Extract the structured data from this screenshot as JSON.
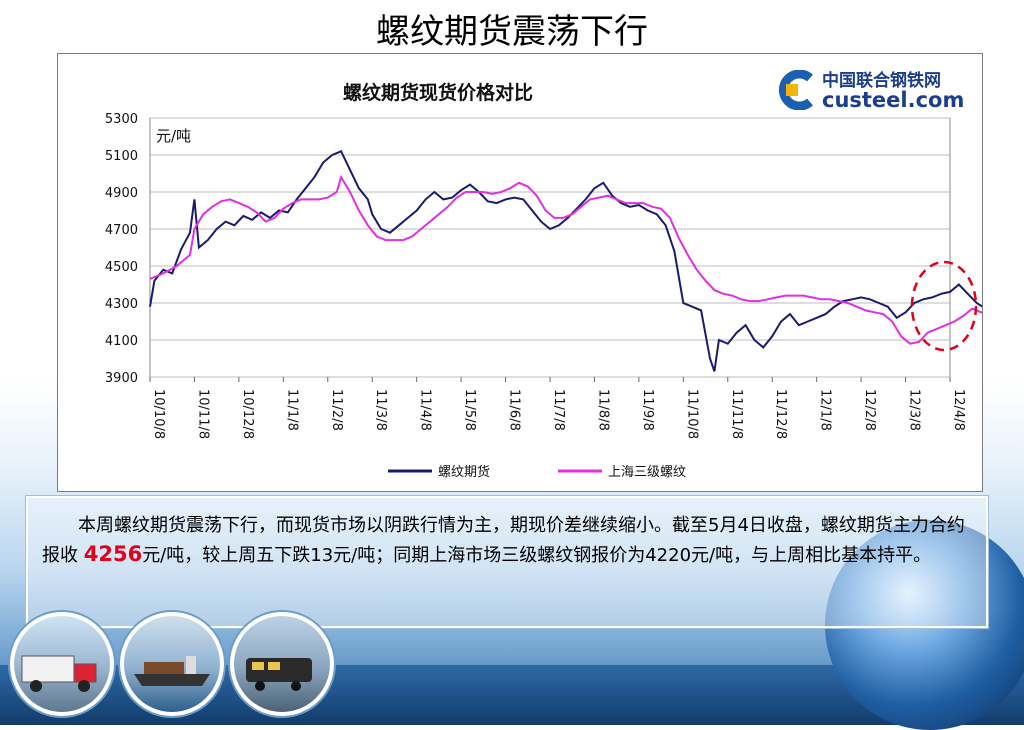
{
  "slide": {
    "title": "螺纹期货震荡下行"
  },
  "chart_data": {
    "type": "line",
    "title": "螺纹期货现货价格对比",
    "unit_label": "元/吨",
    "ylim": [
      3900,
      5300
    ],
    "yticks": [
      3900,
      4100,
      4300,
      4500,
      4700,
      4900,
      5100,
      5300
    ],
    "x_ticks": [
      "10/10/8",
      "10/11/8",
      "10/12/8",
      "11/1/8",
      "11/2/8",
      "11/3/8",
      "11/4/8",
      "11/5/8",
      "11/6/8",
      "11/7/8",
      "11/8/8",
      "11/9/8",
      "11/10/8",
      "11/11/8",
      "11/12/8",
      "12/1/8",
      "12/2/8",
      "12/3/8",
      "12/4/8"
    ],
    "grid": "horizontal",
    "legend_position": "bottom",
    "series": [
      {
        "name": "螺纹期货",
        "color": "#1a1a6e",
        "points": [
          [
            0,
            4280
          ],
          [
            0.1,
            4420
          ],
          [
            0.3,
            4480
          ],
          [
            0.5,
            4460
          ],
          [
            0.7,
            4590
          ],
          [
            0.9,
            4680
          ],
          [
            1.0,
            4860
          ],
          [
            1.1,
            4600
          ],
          [
            1.3,
            4640
          ],
          [
            1.5,
            4700
          ],
          [
            1.7,
            4740
          ],
          [
            1.9,
            4720
          ],
          [
            2.1,
            4770
          ],
          [
            2.3,
            4750
          ],
          [
            2.5,
            4790
          ],
          [
            2.7,
            4760
          ],
          [
            2.9,
            4800
          ],
          [
            3.1,
            4790
          ],
          [
            3.3,
            4860
          ],
          [
            3.5,
            4920
          ],
          [
            3.7,
            4980
          ],
          [
            3.9,
            5060
          ],
          [
            4.1,
            5100
          ],
          [
            4.3,
            5120
          ],
          [
            4.5,
            5020
          ],
          [
            4.7,
            4920
          ],
          [
            4.9,
            4860
          ],
          [
            5.0,
            4780
          ],
          [
            5.2,
            4700
          ],
          [
            5.4,
            4680
          ],
          [
            5.6,
            4720
          ],
          [
            5.8,
            4760
          ],
          [
            6.0,
            4800
          ],
          [
            6.2,
            4860
          ],
          [
            6.4,
            4900
          ],
          [
            6.6,
            4860
          ],
          [
            6.8,
            4870
          ],
          [
            7.0,
            4910
          ],
          [
            7.2,
            4940
          ],
          [
            7.4,
            4900
          ],
          [
            7.6,
            4850
          ],
          [
            7.8,
            4840
          ],
          [
            8.0,
            4860
          ],
          [
            8.2,
            4870
          ],
          [
            8.4,
            4860
          ],
          [
            8.6,
            4800
          ],
          [
            8.8,
            4740
          ],
          [
            9.0,
            4700
          ],
          [
            9.2,
            4720
          ],
          [
            9.4,
            4760
          ],
          [
            9.6,
            4810
          ],
          [
            9.8,
            4860
          ],
          [
            10.0,
            4920
          ],
          [
            10.2,
            4950
          ],
          [
            10.4,
            4880
          ],
          [
            10.6,
            4840
          ],
          [
            10.8,
            4820
          ],
          [
            11.0,
            4830
          ],
          [
            11.2,
            4800
          ],
          [
            11.4,
            4780
          ],
          [
            11.6,
            4720
          ],
          [
            11.8,
            4580
          ],
          [
            12.0,
            4300
          ],
          [
            12.2,
            4280
          ],
          [
            12.4,
            4260
          ],
          [
            12.6,
            4000
          ],
          [
            12.7,
            3930
          ],
          [
            12.8,
            4100
          ],
          [
            13.0,
            4080
          ],
          [
            13.2,
            4140
          ],
          [
            13.4,
            4180
          ],
          [
            13.6,
            4100
          ],
          [
            13.8,
            4060
          ],
          [
            14.0,
            4120
          ],
          [
            14.2,
            4200
          ],
          [
            14.4,
            4240
          ],
          [
            14.6,
            4180
          ],
          [
            14.8,
            4200
          ],
          [
            15.0,
            4220
          ],
          [
            15.2,
            4240
          ],
          [
            15.4,
            4280
          ],
          [
            15.6,
            4310
          ],
          [
            15.8,
            4320
          ],
          [
            16.0,
            4330
          ],
          [
            16.2,
            4320
          ],
          [
            16.4,
            4300
          ],
          [
            16.6,
            4280
          ],
          [
            16.8,
            4220
          ],
          [
            17.0,
            4250
          ],
          [
            17.2,
            4300
          ],
          [
            17.4,
            4320
          ],
          [
            17.6,
            4330
          ],
          [
            17.8,
            4350
          ],
          [
            18.0,
            4360
          ],
          [
            18.2,
            4400
          ],
          [
            18.4,
            4350
          ],
          [
            18.6,
            4300
          ],
          [
            18.8,
            4270
          ],
          [
            19.0,
            4256
          ]
        ]
      },
      {
        "name": "上海三级螺纹",
        "color": "#e030e0",
        "points": [
          [
            0,
            4430
          ],
          [
            0.3,
            4460
          ],
          [
            0.6,
            4500
          ],
          [
            0.9,
            4560
          ],
          [
            1.0,
            4700
          ],
          [
            1.2,
            4780
          ],
          [
            1.4,
            4820
          ],
          [
            1.6,
            4850
          ],
          [
            1.8,
            4860
          ],
          [
            2.0,
            4840
          ],
          [
            2.2,
            4820
          ],
          [
            2.4,
            4790
          ],
          [
            2.6,
            4740
          ],
          [
            2.8,
            4760
          ],
          [
            3.0,
            4810
          ],
          [
            3.2,
            4840
          ],
          [
            3.4,
            4860
          ],
          [
            3.6,
            4860
          ],
          [
            3.8,
            4860
          ],
          [
            4.0,
            4870
          ],
          [
            4.2,
            4900
          ],
          [
            4.3,
            4980
          ],
          [
            4.5,
            4900
          ],
          [
            4.7,
            4800
          ],
          [
            4.9,
            4720
          ],
          [
            5.1,
            4660
          ],
          [
            5.3,
            4640
          ],
          [
            5.5,
            4640
          ],
          [
            5.7,
            4640
          ],
          [
            5.9,
            4660
          ],
          [
            6.1,
            4700
          ],
          [
            6.3,
            4740
          ],
          [
            6.5,
            4780
          ],
          [
            6.7,
            4820
          ],
          [
            6.9,
            4870
          ],
          [
            7.1,
            4900
          ],
          [
            7.3,
            4900
          ],
          [
            7.5,
            4900
          ],
          [
            7.7,
            4890
          ],
          [
            7.9,
            4900
          ],
          [
            8.1,
            4920
          ],
          [
            8.3,
            4950
          ],
          [
            8.5,
            4930
          ],
          [
            8.7,
            4880
          ],
          [
            8.9,
            4800
          ],
          [
            9.1,
            4760
          ],
          [
            9.3,
            4760
          ],
          [
            9.5,
            4780
          ],
          [
            9.7,
            4820
          ],
          [
            9.9,
            4860
          ],
          [
            10.1,
            4870
          ],
          [
            10.3,
            4880
          ],
          [
            10.5,
            4860
          ],
          [
            10.7,
            4840
          ],
          [
            10.9,
            4840
          ],
          [
            11.1,
            4840
          ],
          [
            11.3,
            4820
          ],
          [
            11.5,
            4810
          ],
          [
            11.7,
            4760
          ],
          [
            11.9,
            4650
          ],
          [
            12.1,
            4560
          ],
          [
            12.3,
            4480
          ],
          [
            12.5,
            4420
          ],
          [
            12.7,
            4370
          ],
          [
            12.9,
            4350
          ],
          [
            13.1,
            4340
          ],
          [
            13.3,
            4320
          ],
          [
            13.5,
            4310
          ],
          [
            13.7,
            4310
          ],
          [
            13.9,
            4320
          ],
          [
            14.1,
            4330
          ],
          [
            14.3,
            4340
          ],
          [
            14.5,
            4340
          ],
          [
            14.7,
            4340
          ],
          [
            14.9,
            4330
          ],
          [
            15.1,
            4320
          ],
          [
            15.3,
            4320
          ],
          [
            15.5,
            4310
          ],
          [
            15.7,
            4300
          ],
          [
            15.9,
            4280
          ],
          [
            16.1,
            4260
          ],
          [
            16.3,
            4250
          ],
          [
            16.5,
            4240
          ],
          [
            16.7,
            4200
          ],
          [
            16.9,
            4120
          ],
          [
            17.1,
            4080
          ],
          [
            17.3,
            4090
          ],
          [
            17.5,
            4140
          ],
          [
            17.7,
            4160
          ],
          [
            17.9,
            4180
          ],
          [
            18.1,
            4200
          ],
          [
            18.3,
            4230
          ],
          [
            18.5,
            4270
          ],
          [
            18.7,
            4250
          ],
          [
            18.9,
            4230
          ],
          [
            19.0,
            4220
          ]
        ]
      }
    ]
  },
  "logo": {
    "cn": "中国联合钢铁网",
    "en": "custeel.com"
  },
  "summary": {
    "part1": "本周螺纹期货震荡下行，而现货市场以阴跌行情为主，期现价差继续缩小。截至5月4日收盘，螺纹期货主力合约报收 ",
    "highlight": "4256",
    "part2": "元/吨，较上周五下跌13元/吨；同期上海市场三级螺纹钢报价为4220元/吨，与上周相比基本持平。"
  }
}
